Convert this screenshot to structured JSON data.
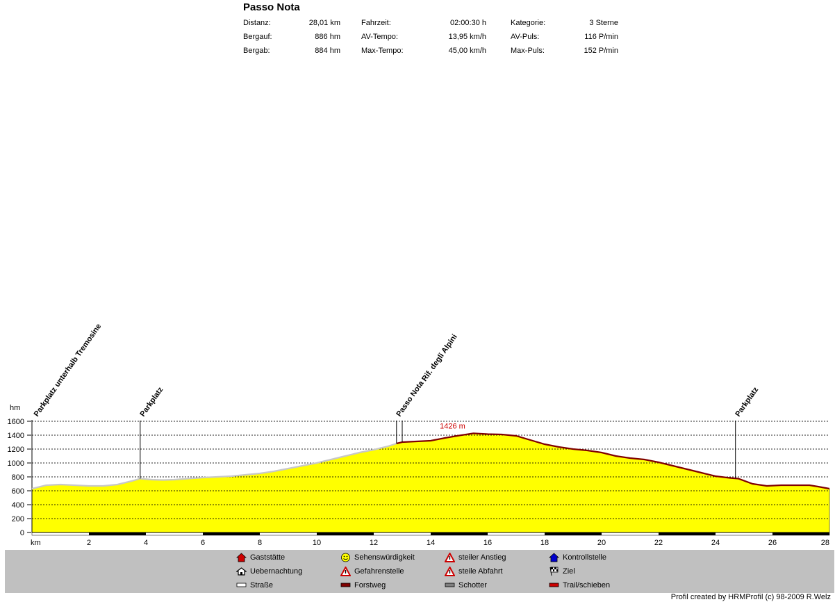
{
  "title": "Passo Nota",
  "stats": [
    {
      "label": "Distanz:",
      "value": "28,01 km"
    },
    {
      "label": "Bergauf:",
      "value": "886 hm"
    },
    {
      "label": "Bergab:",
      "value": "884 hm"
    },
    {
      "label": "Fahrzeit:",
      "value": "02:00:30 h"
    },
    {
      "label": "AV-Tempo:",
      "value": "13,95 km/h"
    },
    {
      "label": "Max-Tempo:",
      "value": "45,00 km/h"
    },
    {
      "label": "Kategorie:",
      "value": "3 Sterne"
    },
    {
      "label": "AV-Puls:",
      "value": "116 P/min"
    },
    {
      "label": "Max-Puls:",
      "value": "152 P/min"
    }
  ],
  "chart_data": {
    "type": "area",
    "xlabel": "km",
    "ylabel": "hm",
    "xlim": [
      0,
      28
    ],
    "ylim": [
      0,
      1600
    ],
    "xticks": [
      2,
      4,
      6,
      8,
      10,
      12,
      14,
      16,
      18,
      20,
      22,
      24,
      26,
      28
    ],
    "yticks": [
      0,
      200,
      400,
      600,
      800,
      1000,
      1200,
      1400,
      1600
    ],
    "grid": "horizontal dashed",
    "colors": {
      "fill": "#ffff00",
      "road": "#c8c8c8",
      "forest": "#800000",
      "grid": "#000000",
      "max_label": "#cc0000"
    },
    "x": [
      0,
      0.5,
      1,
      1.5,
      2,
      2.5,
      3,
      3.5,
      3.8,
      4.2,
      4.6,
      5,
      5.5,
      6,
      6.5,
      7,
      7.5,
      8,
      8.5,
      9,
      9.5,
      10,
      10.5,
      11,
      11.5,
      12,
      12.5,
      12.8,
      13,
      13.5,
      14,
      14.5,
      15,
      15.5,
      16,
      16.5,
      17,
      17.5,
      18,
      18.5,
      19,
      19.5,
      20,
      20.5,
      21,
      21.5,
      22,
      22.5,
      23,
      23.5,
      24,
      24.5,
      24.8,
      25.3,
      25.8,
      26.3,
      26.8,
      27.3,
      27.6,
      28
    ],
    "y": [
      630,
      680,
      690,
      680,
      670,
      670,
      690,
      740,
      775,
      760,
      755,
      760,
      775,
      790,
      800,
      810,
      830,
      850,
      880,
      920,
      960,
      1000,
      1050,
      1100,
      1150,
      1190,
      1240,
      1280,
      1300,
      1310,
      1320,
      1360,
      1395,
      1426,
      1415,
      1410,
      1390,
      1330,
      1270,
      1230,
      1200,
      1180,
      1150,
      1100,
      1070,
      1050,
      1010,
      960,
      910,
      860,
      810,
      785,
      775,
      700,
      670,
      680,
      680,
      680,
      660,
      630
    ],
    "surface_segments": [
      {
        "type": "Straße",
        "from": 0,
        "to": 12.8
      },
      {
        "type": "Forstweg",
        "from": 12.8,
        "to": 28
      }
    ],
    "max_label": {
      "text": "1426 m",
      "x": 15.5,
      "y": 1426
    },
    "waypoints": [
      {
        "name": "Parkplatz unterhalb Tremosine",
        "km": 0
      },
      {
        "name": "Parkplatz",
        "km": 3.8
      },
      {
        "name": "Passo Nota",
        "km": 12.8
      },
      {
        "name": "Rif. degli Alpini",
        "km": 13
      },
      {
        "name": "Parkplatz",
        "km": 24.7
      }
    ]
  },
  "legend": [
    {
      "label": "Gaststätte",
      "icon": "house-red-icon",
      "color": "#cc0000"
    },
    {
      "label": "Sehenswürdigkeit",
      "icon": "smiley-icon",
      "color": "#ffff00"
    },
    {
      "label": "steiler Anstieg",
      "icon": "warning-up-icon",
      "color": "#cc0000"
    },
    {
      "label": "Kontrollstelle",
      "icon": "house-blue-icon",
      "color": "#0000cc"
    },
    {
      "label": "Uebernachtung",
      "icon": "house-outline-icon",
      "color": "#ffffff"
    },
    {
      "label": "Gefahrenstelle",
      "icon": "warning-icon",
      "color": "#cc0000"
    },
    {
      "label": "steile Abfahrt",
      "icon": "warning-down-icon",
      "color": "#cc0000"
    },
    {
      "label": "Ziel",
      "icon": "checkered-flag-icon",
      "color": "#000000"
    },
    {
      "label": "Straße",
      "icon": "surface-road-icon",
      "color": "#ffffff"
    },
    {
      "label": "Forstweg",
      "icon": "surface-forest-icon",
      "color": "#800000"
    },
    {
      "label": "Schotter",
      "icon": "surface-gravel-icon",
      "color": "#808080"
    },
    {
      "label": "Trail/schieben",
      "icon": "surface-trail-icon",
      "color": "#cc0000"
    }
  ],
  "credit": "Profil created by HRMProfil (c) 98-2009 R.Welz"
}
